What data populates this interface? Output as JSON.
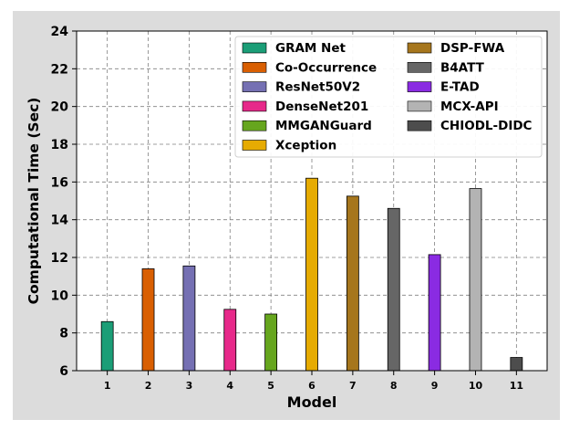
{
  "chart_data": {
    "type": "bar",
    "title": "",
    "xlabel": "Model",
    "ylabel": "Computational Time (Sec)",
    "ylim": [
      6,
      24
    ],
    "yticks": [
      6,
      8,
      10,
      12,
      14,
      16,
      18,
      20,
      22,
      24
    ],
    "grid": true,
    "legend_position": "top-right",
    "categories": [
      "1",
      "2",
      "3",
      "4",
      "5",
      "6",
      "7",
      "8",
      "9",
      "10",
      "11"
    ],
    "series": [
      {
        "name": "GRAM Net",
        "category": "1",
        "value": 8.6,
        "color": "#1b9e77"
      },
      {
        "name": "Co-Occurrence",
        "category": "2",
        "value": 11.4,
        "color": "#d95f02"
      },
      {
        "name": "ResNet50V2",
        "category": "3",
        "value": 11.55,
        "color": "#7570b3"
      },
      {
        "name": "DenseNet201",
        "category": "4",
        "value": 9.25,
        "color": "#e7298a"
      },
      {
        "name": "MMGANGuard",
        "category": "5",
        "value": 9.0,
        "color": "#66a61e"
      },
      {
        "name": "Xception",
        "category": "6",
        "value": 16.2,
        "color": "#e6ab02"
      },
      {
        "name": "DSP-FWA",
        "category": "7",
        "value": 15.25,
        "color": "#a6761d"
      },
      {
        "name": "B4ATT",
        "category": "8",
        "value": 14.6,
        "color": "#666666"
      },
      {
        "name": "E-TAD",
        "category": "9",
        "value": 12.15,
        "color": "#8a2be2"
      },
      {
        "name": "MCX-API",
        "category": "10",
        "value": 15.65,
        "color": "#b3b3b3"
      },
      {
        "name": "CHIODL-DIDC",
        "category": "11",
        "value": 6.7,
        "color": "#4d4d4d"
      }
    ]
  }
}
